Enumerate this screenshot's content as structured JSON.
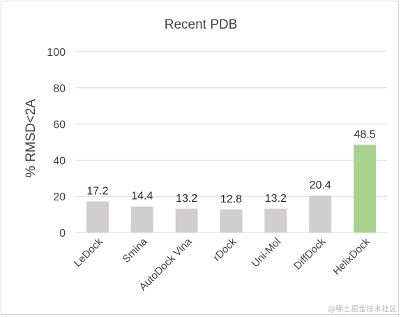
{
  "chart_data": {
    "type": "bar",
    "title": "Recent PDB",
    "xlabel": "",
    "ylabel": "% RMSD<2A",
    "ylim": [
      0,
      100
    ],
    "yticks": [
      0,
      20,
      40,
      60,
      80,
      100
    ],
    "grid": true,
    "legend": "none",
    "categories": [
      "LeDock",
      "Smina",
      "AutoDock Vina",
      "rDock",
      "Uni-Mol",
      "DiffDock",
      "HelixDock"
    ],
    "values": [
      17.2,
      14.4,
      13.2,
      12.8,
      13.2,
      20.4,
      48.5
    ],
    "data_labels": [
      "17.2",
      "14.4",
      "13.2",
      "12.8",
      "13.2",
      "20.4",
      "48.5"
    ],
    "colors": {
      "default_bar": "#d0cece",
      "highlight_bar": "#a9d18e",
      "gridline": "#d9d9d9"
    },
    "highlight_index": 6
  },
  "watermark": "@稀土掘金技术社区"
}
